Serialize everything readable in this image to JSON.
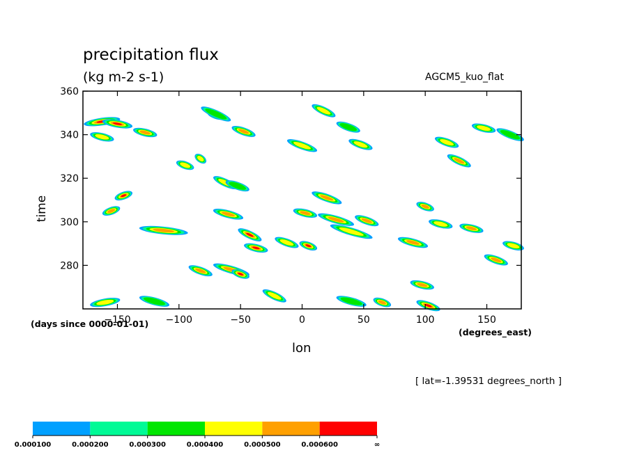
{
  "chart_data": {
    "type": "heatmap",
    "title": "precipitation flux",
    "units": "(kg m-2 s-1)",
    "model_label": "AGCM5_kuo_flat",
    "xlabel": "lon",
    "ylabel": "time",
    "x_units": "(degrees_east)",
    "y_units": "(days since 0000-01-01)",
    "annotation": "[ lat=-1.39531 degrees_north ]",
    "xlim": [
      -178,
      178
    ],
    "ylim": [
      260,
      360
    ],
    "x_ticks": [
      -150,
      -100,
      -50,
      0,
      50,
      100,
      150
    ],
    "x_tick_labels": [
      "−150",
      "−100",
      "−50",
      "0",
      "50",
      "100",
      "150"
    ],
    "y_ticks": [
      280,
      300,
      320,
      340,
      360
    ],
    "y_tick_labels": [
      "280",
      "300",
      "320",
      "340",
      "360"
    ],
    "grid": false,
    "colorbar": {
      "levels": [
        "0.000100",
        "0.000200",
        "0.000300",
        "0.000400",
        "0.000500",
        "0.000600",
        "∞"
      ],
      "colors": [
        "#00a0ff",
        "#00fa96",
        "#00e600",
        "#ffff00",
        "#ffa000",
        "#ff0000"
      ]
    },
    "features": [
      {
        "x0": -175,
        "y0": 345,
        "x1": -150,
        "y1": 347,
        "level": 5
      },
      {
        "x0": -160,
        "y0": 346,
        "x1": -140,
        "y1": 344,
        "level": 5
      },
      {
        "x0": -135,
        "y0": 342,
        "x1": -120,
        "y1": 340,
        "level": 4
      },
      {
        "x0": -170,
        "y0": 340,
        "x1": -155,
        "y1": 338,
        "level": 3
      },
      {
        "x0": -150,
        "y0": 311,
        "x1": -140,
        "y1": 313,
        "level": 5
      },
      {
        "x0": -160,
        "y0": 304,
        "x1": -150,
        "y1": 306,
        "level": 4
      },
      {
        "x0": -130,
        "y0": 297,
        "x1": -95,
        "y1": 295,
        "level": 4
      },
      {
        "x0": -100,
        "y0": 327,
        "x1": -90,
        "y1": 325,
        "level": 3
      },
      {
        "x0": -85,
        "y0": 330,
        "x1": -80,
        "y1": 328,
        "level": 3
      },
      {
        "x0": -75,
        "y0": 350,
        "x1": -65,
        "y1": 348,
        "level": 4
      },
      {
        "x0": -80,
        "y0": 352,
        "x1": -60,
        "y1": 347,
        "level": 2
      },
      {
        "x0": -55,
        "y0": 343,
        "x1": -40,
        "y1": 340,
        "level": 4
      },
      {
        "x0": -70,
        "y0": 320,
        "x1": -55,
        "y1": 316,
        "level": 3
      },
      {
        "x0": -70,
        "y0": 305,
        "x1": -50,
        "y1": 302,
        "level": 4
      },
      {
        "x0": -50,
        "y0": 296,
        "x1": -35,
        "y1": 292,
        "level": 5
      },
      {
        "x0": -45,
        "y0": 289,
        "x1": -30,
        "y1": 287,
        "level": 5
      },
      {
        "x0": -20,
        "y0": 292,
        "x1": -5,
        "y1": 289,
        "level": 3
      },
      {
        "x0": -70,
        "y0": 280,
        "x1": -45,
        "y1": 276,
        "level": 4
      },
      {
        "x0": -90,
        "y0": 279,
        "x1": -75,
        "y1": 276,
        "level": 4
      },
      {
        "x0": -55,
        "y0": 277,
        "x1": -45,
        "y1": 275,
        "level": 5
      },
      {
        "x0": -10,
        "y0": 337,
        "x1": 10,
        "y1": 333,
        "level": 3
      },
      {
        "x0": -5,
        "y0": 305,
        "x1": 10,
        "y1": 303,
        "level": 4
      },
      {
        "x0": 0,
        "y0": 290,
        "x1": 10,
        "y1": 288,
        "level": 5
      },
      {
        "x0": 10,
        "y0": 313,
        "x1": 30,
        "y1": 309,
        "level": 4
      },
      {
        "x0": 15,
        "y0": 303,
        "x1": 40,
        "y1": 299,
        "level": 4
      },
      {
        "x0": 25,
        "y0": 298,
        "x1": 55,
        "y1": 293,
        "level": 3
      },
      {
        "x0": 45,
        "y0": 302,
        "x1": 60,
        "y1": 299,
        "level": 4
      },
      {
        "x0": 10,
        "y0": 353,
        "x1": 25,
        "y1": 349,
        "level": 3
      },
      {
        "x0": 40,
        "y0": 337,
        "x1": 55,
        "y1": 334,
        "level": 3
      },
      {
        "x0": 60,
        "y0": 264,
        "x1": 70,
        "y1": 262,
        "level": 4
      },
      {
        "x0": 80,
        "y0": 292,
        "x1": 100,
        "y1": 289,
        "level": 4
      },
      {
        "x0": 90,
        "y0": 272,
        "x1": 105,
        "y1": 270,
        "level": 4
      },
      {
        "x0": 95,
        "y0": 263,
        "x1": 110,
        "y1": 260,
        "level": 5
      },
      {
        "x0": 95,
        "y0": 308,
        "x1": 105,
        "y1": 306,
        "level": 4
      },
      {
        "x0": 105,
        "y0": 300,
        "x1": 120,
        "y1": 298,
        "level": 3
      },
      {
        "x0": 110,
        "y0": 338,
        "x1": 125,
        "y1": 335,
        "level": 3
      },
      {
        "x0": 120,
        "y0": 330,
        "x1": 135,
        "y1": 326,
        "level": 4
      },
      {
        "x0": 130,
        "y0": 298,
        "x1": 145,
        "y1": 296,
        "level": 4
      },
      {
        "x0": 140,
        "y0": 344,
        "x1": 155,
        "y1": 342,
        "level": 3
      },
      {
        "x0": 150,
        "y0": 284,
        "x1": 165,
        "y1": 281,
        "level": 4
      },
      {
        "x0": 160,
        "y0": 342,
        "x1": 178,
        "y1": 338,
        "level": 2
      },
      {
        "x0": 165,
        "y0": 290,
        "x1": 178,
        "y1": 288,
        "level": 3
      },
      {
        "x0": -60,
        "y0": 318,
        "x1": -45,
        "y1": 315,
        "level": 2
      },
      {
        "x0": 30,
        "y0": 345,
        "x1": 45,
        "y1": 342,
        "level": 2
      },
      {
        "x0": -170,
        "y0": 262,
        "x1": -150,
        "y1": 264,
        "level": 3
      },
      {
        "x0": -130,
        "y0": 265,
        "x1": -110,
        "y1": 262,
        "level": 2
      },
      {
        "x0": 30,
        "y0": 265,
        "x1": 50,
        "y1": 262,
        "level": 2
      },
      {
        "x0": -30,
        "y0": 268,
        "x1": -15,
        "y1": 264,
        "level": 3
      }
    ]
  }
}
